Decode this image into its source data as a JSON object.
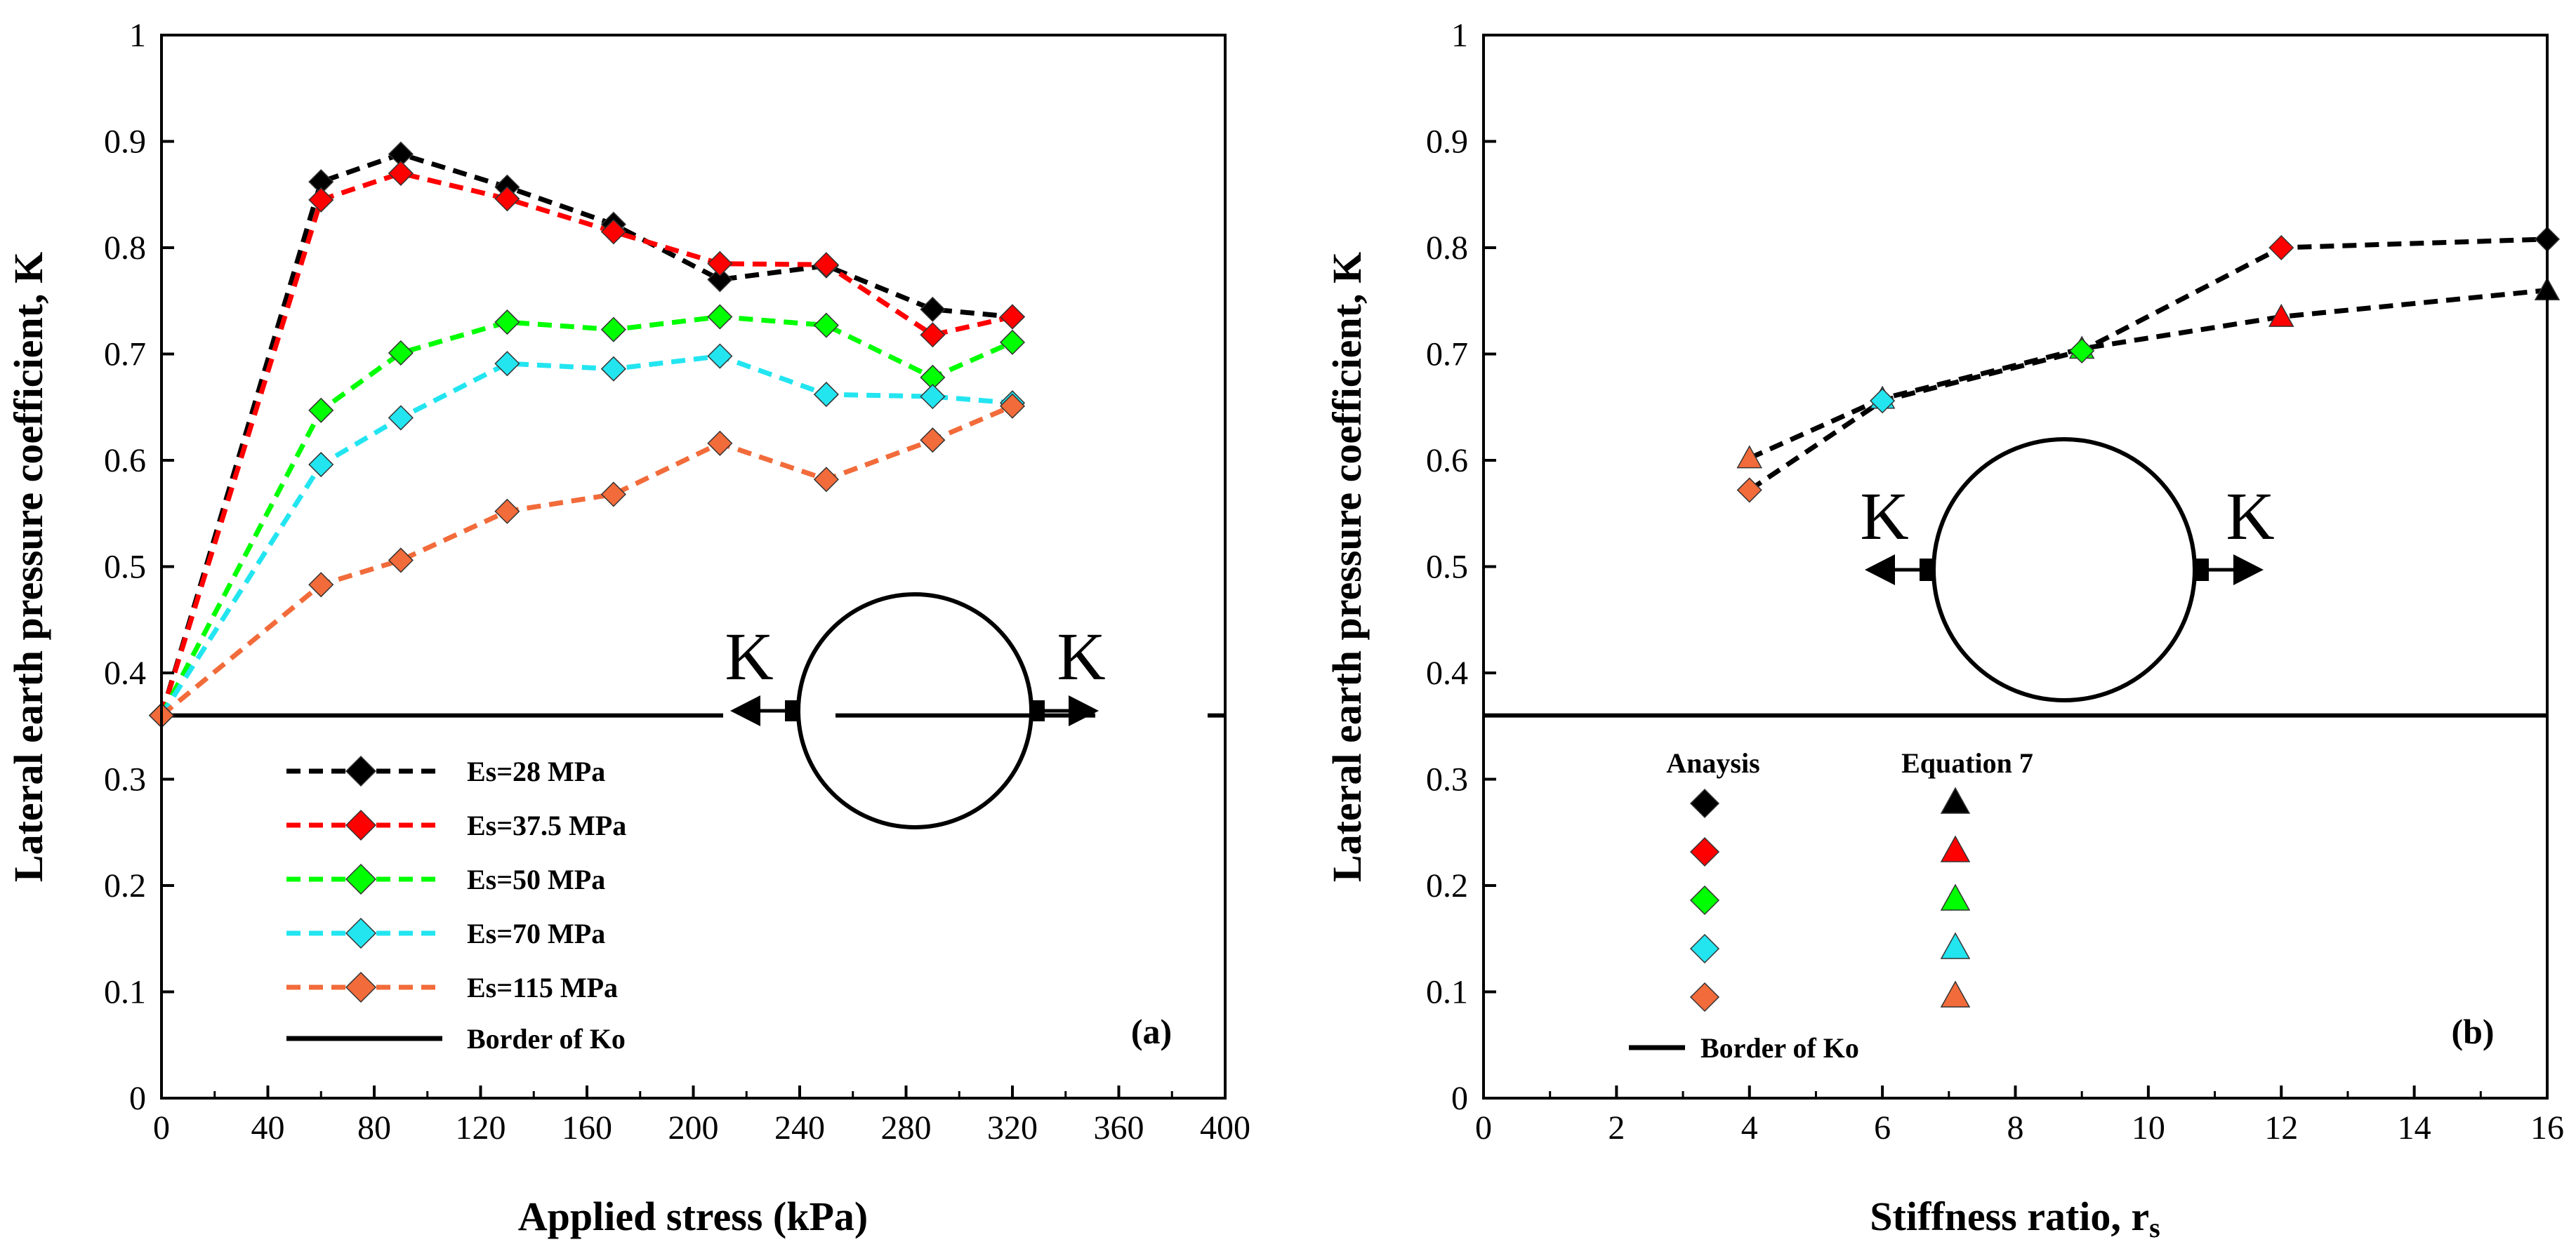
{
  "chart_data": [
    {
      "id": "a",
      "type": "line",
      "panel_label": "(a)",
      "xlabel": "Applied stress (kPa)",
      "ylabel": "Lateral earth pressure coefficient, K",
      "xlim": [
        0,
        400
      ],
      "ylim": [
        0,
        1
      ],
      "xticks": [
        "0",
        "40",
        "80",
        "120",
        "160",
        "200",
        "240",
        "280",
        "320",
        "360",
        "400"
      ],
      "yticks": [
        "0",
        "0.1",
        "0.2",
        "0.3",
        "0.4",
        "0.5",
        "0.6",
        "0.7",
        "0.8",
        "0.9",
        "1"
      ],
      "x": [
        0,
        60,
        90,
        130,
        170,
        210,
        250,
        290,
        320
      ],
      "series": [
        {
          "name": "Es=28 MPa",
          "color": "#000000",
          "values": [
            0.36,
            0.862,
            0.888,
            0.857,
            0.822,
            0.77,
            0.783,
            0.742,
            0.735
          ]
        },
        {
          "name": "Es=37.5 MPa",
          "color": "#ff0000",
          "values": [
            0.36,
            0.845,
            0.87,
            0.846,
            0.815,
            0.785,
            0.784,
            0.718,
            0.735
          ]
        },
        {
          "name": "Es=50 MPa",
          "color": "#00ff00",
          "values": [
            0.36,
            0.647,
            0.701,
            0.73,
            0.723,
            0.735,
            0.727,
            0.678,
            0.711
          ]
        },
        {
          "name": "Es=70 MPa",
          "color": "#22e5f0",
          "values": [
            0.36,
            0.596,
            0.64,
            0.691,
            0.686,
            0.698,
            0.662,
            0.66,
            0.654
          ]
        },
        {
          "name": "Es=115 MPa",
          "color": "#f26b3a",
          "values": [
            0.36,
            0.483,
            0.506,
            0.552,
            0.568,
            0.616,
            0.582,
            0.619,
            0.651
          ]
        }
      ],
      "reference_line": {
        "name": "Border of Ko",
        "value": 0.36
      },
      "diagram_labels": [
        "K",
        "K"
      ]
    },
    {
      "id": "b",
      "type": "line",
      "panel_label": "(b)",
      "xlabel_main": "Stiffness ratio, r",
      "xlabel_sub": "s",
      "ylabel": "Lateral earth pressure coefficient, K",
      "xlim": [
        0,
        16
      ],
      "ylim": [
        0,
        1
      ],
      "xticks": [
        "0",
        "2",
        "4",
        "6",
        "8",
        "10",
        "12",
        "14",
        "16"
      ],
      "yticks": [
        "0",
        "0.1",
        "0.2",
        "0.3",
        "0.4",
        "0.5",
        "0.6",
        "0.7",
        "0.8",
        "0.9",
        "1"
      ],
      "analysis": {
        "name": "Anaysis",
        "points": [
          {
            "x": 4,
            "y": 0.572,
            "color": "#f26b3a"
          },
          {
            "x": 6,
            "y": 0.656,
            "color": "#22e5f0"
          },
          {
            "x": 9,
            "y": 0.703,
            "color": "#00ff00"
          },
          {
            "x": 12,
            "y": 0.8,
            "color": "#ff0000"
          },
          {
            "x": 16,
            "y": 0.808,
            "color": "#000000"
          }
        ]
      },
      "equation": {
        "name": "Equation 7",
        "points": [
          {
            "x": 4,
            "y": 0.602,
            "color": "#f26b3a"
          },
          {
            "x": 6,
            "y": 0.658,
            "color": "#22e5f0"
          },
          {
            "x": 9,
            "y": 0.705,
            "color": "#00ff00"
          },
          {
            "x": 12,
            "y": 0.735,
            "color": "#ff0000"
          },
          {
            "x": 16,
            "y": 0.76,
            "color": "#000000"
          }
        ]
      },
      "legend_colors": [
        "#000000",
        "#ff0000",
        "#00ff00",
        "#22e5f0",
        "#f26b3a"
      ],
      "reference_line": {
        "name": "Border of Ko",
        "value": 0.36
      },
      "diagram_labels": [
        "K",
        "K"
      ]
    }
  ]
}
